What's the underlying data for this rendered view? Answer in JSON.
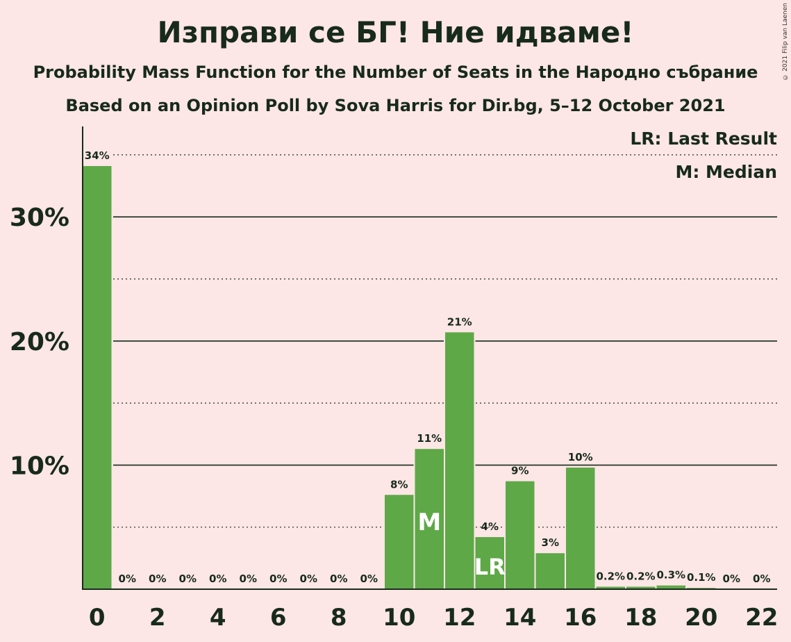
{
  "title": "Изправи се БГ! Ние идваме!",
  "subtitle": "Probability Mass Function for the Number of Seats in the Народно събрание",
  "subtitle2": "Based on an Opinion Poll by Sova Harris for Dir.bg, 5–12 October 2021",
  "copyright": "© 2021 Filip van Laenen",
  "legend": {
    "last_result": "LR: Last Result",
    "median": "M: Median"
  },
  "colors": {
    "bar": "#5fa848",
    "background": "#fde6e6",
    "text": "#172a1c"
  },
  "chart_data": {
    "type": "bar",
    "xlabel": "",
    "ylabel": "",
    "ylim": [
      0,
      37
    ],
    "y_ticks": [
      10,
      20,
      30
    ],
    "y_tick_labels": [
      "10%",
      "20%",
      "30%"
    ],
    "x_tick_labels": [
      "0",
      "2",
      "4",
      "6",
      "8",
      "10",
      "12",
      "14",
      "16",
      "18",
      "20",
      "22"
    ],
    "categories": [
      0,
      1,
      2,
      3,
      4,
      5,
      6,
      7,
      8,
      9,
      10,
      11,
      12,
      13,
      14,
      15,
      16,
      17,
      18,
      19,
      20,
      21,
      22
    ],
    "values": [
      34.1,
      0,
      0,
      0,
      0,
      0,
      0,
      0,
      0,
      0,
      7.6,
      11.3,
      20.7,
      4.2,
      8.7,
      2.9,
      9.8,
      0.2,
      0.2,
      0.3,
      0.1,
      0,
      0
    ],
    "value_labels": [
      "34%",
      "0%",
      "0%",
      "0%",
      "0%",
      "0%",
      "0%",
      "0%",
      "0%",
      "0%",
      "8%",
      "11%",
      "21%",
      "4%",
      "9%",
      "3%",
      "10%",
      "0.2%",
      "0.2%",
      "0.3%",
      "0.1%",
      "0%",
      "0%"
    ],
    "median_seat": 11,
    "median_label": "M",
    "last_result_seat": 13,
    "last_result_label": "LR",
    "grid": "solid lines at 10% steps, dotted lines at 5% steps",
    "legend_position": "top-right"
  }
}
